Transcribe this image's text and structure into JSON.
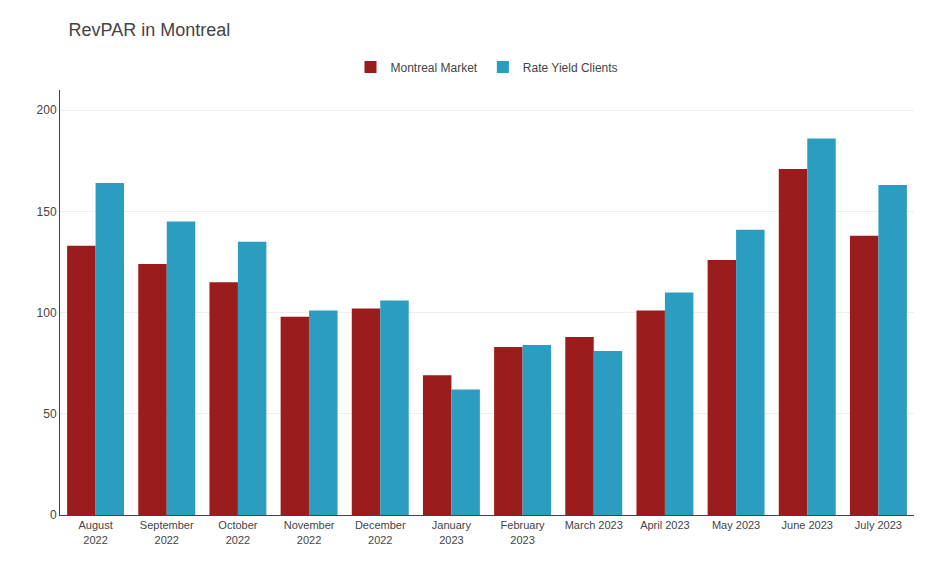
{
  "chart_data": {
    "type": "bar",
    "title": "RevPAR in Montreal",
    "categories": [
      "August\n2022",
      "September\n2022",
      "October\n2022",
      "November\n2022",
      "December\n2022",
      "January\n2023",
      "February\n2023",
      "March 2023",
      "April 2023",
      "May 2023",
      "June 2023",
      "July 2023"
    ],
    "series": [
      {
        "name": "Montreal Market",
        "color": "#9B1C1C",
        "values": [
          133,
          124,
          115,
          98,
          102,
          69,
          83,
          88,
          101,
          126,
          171,
          138
        ]
      },
      {
        "name": "Rate Yield Clients",
        "color": "#2B9DC0",
        "values": [
          164,
          145,
          135,
          101,
          106,
          62,
          84,
          81,
          110,
          141,
          186,
          163
        ]
      }
    ],
    "ylim": [
      0,
      210
    ],
    "yticks": [
      0,
      50,
      100,
      150,
      200
    ],
    "grid": true,
    "legend": "top"
  }
}
